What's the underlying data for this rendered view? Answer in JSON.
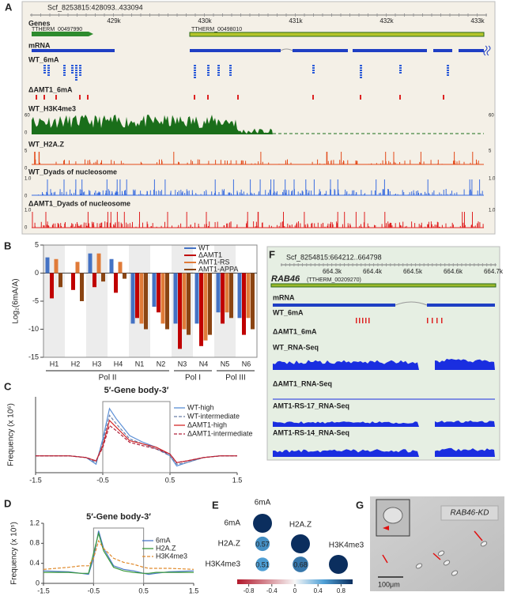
{
  "panel_a": {
    "letter": "A",
    "coords": "Scf_8253815:428093..433094",
    "genes_label": "Genes",
    "gene_left": "TTHERM_00497990",
    "gene_right": "TTHERM_00498010",
    "ticks": [
      "429k",
      "430k",
      "431k",
      "432k",
      "433k"
    ],
    "tracks": [
      {
        "name": "mRNA"
      },
      {
        "name": "WT_6mA"
      },
      {
        "name": "ΔAMT1_6mA"
      },
      {
        "name": "WT_H3K4me3",
        "scale": [
          "60",
          "0"
        ]
      },
      {
        "name": "WT_H2A.Z",
        "scale": [
          "5",
          "0"
        ]
      },
      {
        "name": "WT_Dyads of nucleosome",
        "scale": [
          "1.0",
          "0"
        ]
      },
      {
        "name": "ΔAMT1_Dyads of nucleosome",
        "scale": [
          "1.0",
          "0"
        ]
      }
    ]
  },
  "chart_data": [
    {
      "panel": "B",
      "type": "bar",
      "y_label": "Log₂(6mA/A)",
      "categories": [
        "H1",
        "H2",
        "H3",
        "H4",
        "N1",
        "N2",
        "N3",
        "N4",
        "N5",
        "N6"
      ],
      "series": [
        {
          "name": "WT",
          "color": "#4472c4",
          "values": [
            2.8,
            0,
            3.5,
            2.5,
            -9,
            -6,
            -9,
            -9,
            -7,
            -8
          ]
        },
        {
          "name": "ΔAMT1",
          "color": "#c00000",
          "values": [
            -4.5,
            -3,
            -2.5,
            -3.5,
            -8,
            -7,
            -13.5,
            -13,
            -9,
            -11
          ]
        },
        {
          "name": "AMT1-RS",
          "color": "#e07b39",
          "values": [
            2.5,
            2,
            3.5,
            2,
            -9,
            -9,
            -10,
            -12,
            -7,
            -8
          ]
        },
        {
          "name": "AMT1-APPA",
          "color": "#8b4513",
          "values": [
            -2.5,
            -5,
            -1.5,
            -1,
            -10,
            -10,
            -11,
            -11,
            -8,
            -10
          ]
        }
      ],
      "ylim": [
        -15,
        5
      ],
      "yticks": [
        5,
        0,
        -5,
        -10,
        -15
      ],
      "groups": [
        "Pol II",
        "Pol I",
        "Pol III"
      ],
      "legend": "upper right"
    },
    {
      "panel": "C",
      "type": "line",
      "title": "5′-Gene body-3′",
      "y_label": "Frequency (x 10⁶)",
      "x": [
        -1.5,
        -1.25,
        -1,
        -0.75,
        -0.6,
        -0.5,
        -0.4,
        -0.3,
        -0.1,
        0.1,
        0.3,
        0.5,
        0.6,
        0.75,
        1,
        1.25,
        1.5
      ],
      "series": [
        {
          "name": "WT-high",
          "color": "#5b8fd6",
          "dash": false,
          "values": [
            1,
            1,
            1,
            0.9,
            0.5,
            2,
            3.8,
            3.2,
            2.2,
            1.8,
            1.5,
            1,
            0.4,
            0.6,
            0.9,
            1,
            1
          ]
        },
        {
          "name": "WT-intermediate",
          "color": "#6b7fa8",
          "dash": true,
          "values": [
            1,
            1,
            1,
            0.9,
            0.6,
            1.8,
            3.4,
            2.9,
            2,
            1.7,
            1.4,
            1,
            0.5,
            0.6,
            0.9,
            1,
            1
          ]
        },
        {
          "name": "ΔAMT1-high",
          "color": "#d42a2a",
          "dash": false,
          "values": [
            1,
            1,
            1,
            0.9,
            0.7,
            1.6,
            3.1,
            2.7,
            1.9,
            1.7,
            1.5,
            1.1,
            0.6,
            0.7,
            0.9,
            1,
            1
          ]
        },
        {
          "name": "ΔAMT1-intermediate",
          "color": "#b0203a",
          "dash": true,
          "values": [
            1,
            1,
            1,
            0.9,
            0.7,
            1.5,
            2.8,
            2.5,
            1.8,
            1.6,
            1.4,
            1.1,
            0.6,
            0.7,
            0.9,
            1,
            1
          ]
        }
      ],
      "xlim": [
        -1.5,
        1.5
      ],
      "xticks": [
        -1.5,
        -0.5,
        0.5,
        1.5
      ],
      "ylim": [
        0,
        4.5
      ]
    },
    {
      "panel": "D",
      "type": "line",
      "title": "5′-Gene body-3′",
      "y_label": "Frequency (x 10⁵)",
      "x": [
        -1.5,
        -1.25,
        -1,
        -0.75,
        -0.6,
        -0.5,
        -0.4,
        -0.3,
        -0.1,
        0.1,
        0.3,
        0.5,
        0.6,
        0.75,
        1,
        1.25,
        1.5
      ],
      "series": [
        {
          "name": "6mA",
          "color": "#4a78c8",
          "dash": false,
          "values": [
            0.25,
            0.24,
            0.23,
            0.2,
            0.18,
            0.5,
            1.05,
            0.7,
            0.35,
            0.28,
            0.25,
            0.2,
            0.18,
            0.2,
            0.23,
            0.24,
            0.25
          ]
        },
        {
          "name": "H2A.Z",
          "color": "#3c9a3c",
          "dash": false,
          "values": [
            0.22,
            0.22,
            0.22,
            0.2,
            0.2,
            0.6,
            1.0,
            0.65,
            0.32,
            0.25,
            0.22,
            0.2,
            0.2,
            0.22,
            0.22,
            0.22,
            0.22
          ]
        },
        {
          "name": "H3K4me3",
          "color": "#e0892a",
          "dash": true,
          "values": [
            0.28,
            0.3,
            0.32,
            0.35,
            0.35,
            0.5,
            0.85,
            0.7,
            0.5,
            0.42,
            0.38,
            0.32,
            0.3,
            0.3,
            0.3,
            0.29,
            0.28
          ]
        }
      ],
      "xlim": [
        -1.5,
        1.5
      ],
      "xticks": [
        -1.5,
        -0.5,
        0.5,
        1.5
      ],
      "ylim": [
        0,
        1.2
      ],
      "yticks": [
        0,
        0.4,
        0.8,
        1.2
      ]
    },
    {
      "panel": "E",
      "type": "correlation",
      "labels": [
        "6mA",
        "H2A.Z",
        "H3K4me3"
      ],
      "matrix": [
        [
          1,
          null,
          null
        ],
        [
          0.57,
          1,
          null
        ],
        [
          0.51,
          0.68,
          1
        ]
      ],
      "clim": [
        -1,
        1
      ],
      "cticks": [
        -0.8,
        -0.4,
        0,
        0.4,
        0.8
      ]
    }
  ],
  "panel_f": {
    "letter": "F",
    "coords": "Scf_8254815:664212..664798",
    "gene": "RAB46",
    "gene_id": "(TTHERM_00209270)",
    "ticks": [
      "664.3k",
      "664.4k",
      "664.5k",
      "664.6k",
      "664.7k"
    ],
    "tracks": [
      "mRNA",
      "WT_6mA",
      "ΔAMT1_6mA",
      "WT_RNA-Seq",
      "ΔAMT1_RNA-Seq",
      "AMT1-RS-17_RNA-Seq",
      "AMT1-RS-14_RNA-Seq"
    ]
  },
  "panel_g": {
    "letter": "G",
    "label": "RAB46-KD",
    "scale_bar": "100μm"
  }
}
